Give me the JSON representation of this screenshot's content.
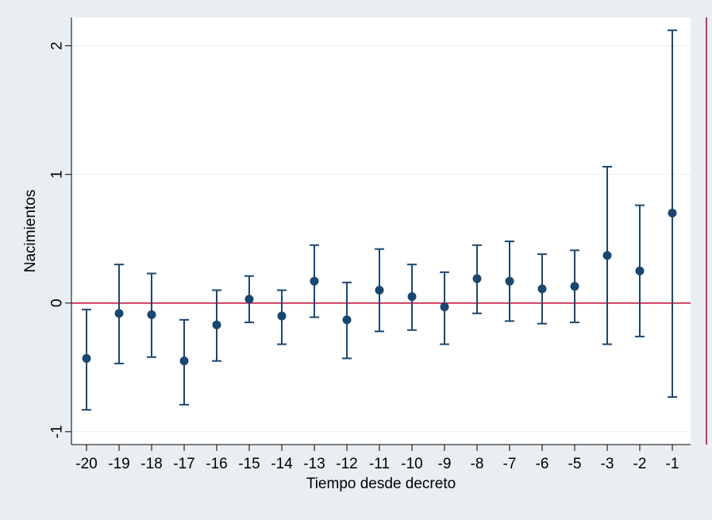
{
  "chart_data": {
    "type": "scatter",
    "subtype": "coefficient-plot-with-error-bars",
    "title": "",
    "xlabel": "Tiempo desde decreto",
    "ylabel": "Nacimientos",
    "categories": [
      "-20",
      "-19",
      "-18",
      "-17",
      "-16",
      "-15",
      "-14",
      "-13",
      "-12",
      "-11",
      "-10",
      "-9",
      "-8",
      "-7",
      "-6",
      "-5",
      "-3",
      "-2",
      "-1"
    ],
    "series": [
      {
        "estimate": [
          -0.43,
          -0.08,
          -0.09,
          -0.45,
          -0.17,
          0.03,
          -0.1,
          0.17,
          -0.13,
          0.1,
          0.05,
          -0.03,
          0.19,
          0.17,
          0.11,
          0.13,
          0.37,
          0.25,
          0.7
        ],
        "lower": [
          -0.83,
          -0.47,
          -0.42,
          -0.79,
          -0.45,
          -0.15,
          -0.32,
          -0.11,
          -0.43,
          -0.22,
          -0.21,
          -0.32,
          -0.08,
          -0.14,
          -0.16,
          -0.15,
          -0.32,
          -0.26,
          -0.73
        ],
        "upper": [
          -0.05,
          0.3,
          0.23,
          -0.13,
          0.1,
          0.21,
          0.1,
          0.45,
          0.16,
          0.42,
          0.3,
          0.24,
          0.45,
          0.48,
          0.38,
          0.41,
          1.06,
          0.76,
          2.12
        ]
      }
    ],
    "yticks": [
      "-1",
      "0",
      "1",
      "2"
    ],
    "ylim": [
      -1.1,
      2.22
    ],
    "reference_line_y": 0,
    "vertical_reference_line": "right edge",
    "grid": "horizontal",
    "legend": "none",
    "colors": {
      "marker": "#1a476f",
      "reference": "#c10534",
      "plot_background": "#ffffff",
      "outer_background": "#e9eef3",
      "grid": "#e6ecf0"
    }
  }
}
